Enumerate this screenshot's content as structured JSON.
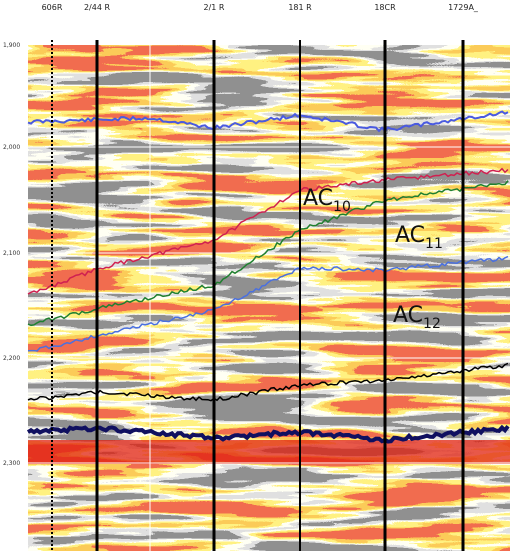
{
  "wells": [
    {
      "name": "606R"
    },
    {
      "name": "2/44 R"
    },
    {
      "name": "2/1 R"
    },
    {
      "name": "181 R"
    },
    {
      "name": "18CR"
    },
    {
      "name": "1729A_"
    }
  ],
  "time_labels": [
    "1,900",
    "2,000",
    "2,100",
    "2,200",
    "2,300"
  ],
  "horizons": [
    {
      "label": "AC",
      "subscript": "10"
    },
    {
      "label": "AC",
      "subscript": "11"
    },
    {
      "label": "AC",
      "subscript": "12"
    }
  ]
}
